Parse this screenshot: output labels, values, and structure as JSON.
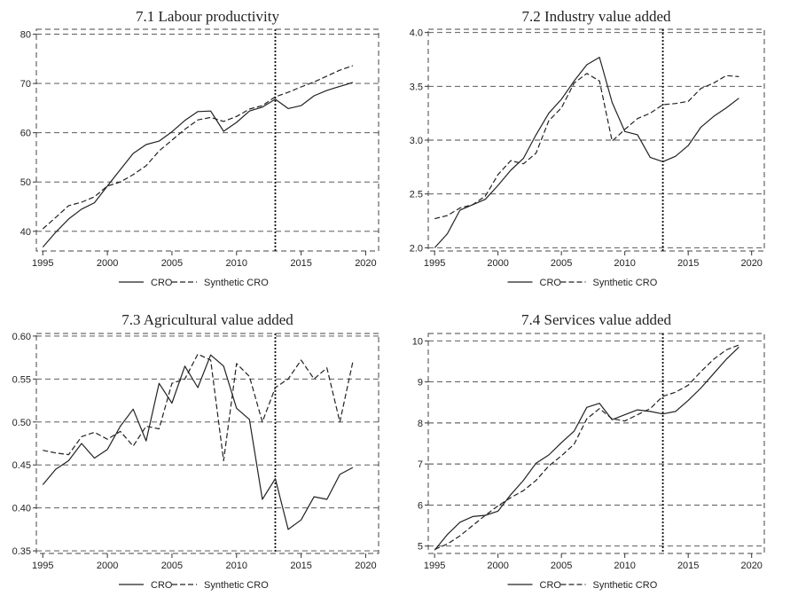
{
  "chart_data": [
    {
      "type": "line",
      "title": "7.1 Labour productivity",
      "xlabel": "",
      "ylabel": "",
      "xlim": [
        1994.5,
        2021
      ],
      "ylim": [
        36,
        81
      ],
      "xticks": [
        1995,
        2000,
        2005,
        2010,
        2015,
        2020
      ],
      "yticks": [
        40,
        50,
        60,
        70,
        80
      ],
      "ytick_labels": [
        "40",
        "50",
        "60",
        "70",
        "80"
      ],
      "grid": "horizontal dashed",
      "treatment_year": 2013,
      "legend": "bottom",
      "x": [
        1995,
        1996,
        1997,
        1998,
        1999,
        2000,
        2001,
        2002,
        2003,
        2004,
        2005,
        2006,
        2007,
        2008,
        2009,
        2010,
        2011,
        2012,
        2013,
        2014,
        2015,
        2016,
        2017,
        2018,
        2019
      ],
      "series": [
        {
          "name": "CRO",
          "dash": "solid",
          "values": [
            36.8,
            39.8,
            42.5,
            44.5,
            45.8,
            49.2,
            52.5,
            55.8,
            57.6,
            58.3,
            60.2,
            62.5,
            64.3,
            64.4,
            60.3,
            62.1,
            64.4,
            65.2,
            66.8,
            64.9,
            65.5,
            67.5,
            68.6,
            69.4,
            70.2
          ]
        },
        {
          "name": "Synthetic CRO",
          "dash": "dashed",
          "values": [
            40.5,
            42.8,
            45.2,
            45.9,
            47.0,
            49.2,
            50.0,
            51.5,
            53.3,
            56.3,
            58.5,
            60.7,
            62.6,
            63.1,
            62.3,
            63.3,
            64.8,
            65.5,
            67.3,
            68.2,
            69.3,
            70.3,
            71.5,
            72.7,
            73.6
          ]
        }
      ]
    },
    {
      "type": "line",
      "title": "7.2 Industry value added",
      "xlabel": "",
      "ylabel": "",
      "xlim": [
        1994.5,
        2021
      ],
      "ylim": [
        1.97,
        4.03
      ],
      "xticks": [
        1995,
        2000,
        2005,
        2010,
        2015,
        2020
      ],
      "yticks": [
        2.0,
        2.5,
        3.0,
        3.5,
        4.0
      ],
      "ytick_labels": [
        "2.0",
        "2.5",
        "3.0",
        "3.5",
        "4.0"
      ],
      "grid": "horizontal dashed",
      "treatment_year": 2013,
      "legend": "bottom",
      "x": [
        1995,
        1996,
        1997,
        1998,
        1999,
        2000,
        2001,
        2002,
        2003,
        2004,
        2005,
        2006,
        2007,
        2008,
        2009,
        2010,
        2011,
        2012,
        2013,
        2014,
        2015,
        2016,
        2017,
        2018,
        2019
      ],
      "series": [
        {
          "name": "CRO",
          "dash": "solid",
          "values": [
            2.0,
            2.13,
            2.35,
            2.4,
            2.45,
            2.58,
            2.72,
            2.83,
            3.05,
            3.25,
            3.38,
            3.55,
            3.7,
            3.77,
            3.35,
            3.08,
            3.05,
            2.84,
            2.8,
            2.85,
            2.95,
            3.12,
            3.22,
            3.3,
            3.39
          ]
        },
        {
          "name": "Synthetic CRO",
          "dash": "dashed",
          "values": [
            2.27,
            2.3,
            2.37,
            2.4,
            2.48,
            2.68,
            2.81,
            2.78,
            2.88,
            3.18,
            3.3,
            3.53,
            3.62,
            3.55,
            2.99,
            3.1,
            3.2,
            3.25,
            3.33,
            3.34,
            3.36,
            3.48,
            3.53,
            3.6,
            3.59
          ]
        }
      ]
    },
    {
      "type": "line",
      "title": "7.3 Agricultural value added",
      "xlabel": "",
      "ylabel": "",
      "xlim": [
        1994.5,
        2021
      ],
      "ylim": [
        0.347,
        0.603
      ],
      "xticks": [
        1995,
        2000,
        2005,
        2010,
        2015,
        2020
      ],
      "yticks": [
        0.35,
        0.4,
        0.45,
        0.5,
        0.55,
        0.6
      ],
      "ytick_labels": [
        "0.35",
        "0.40",
        "0.45",
        "0.50",
        "0.55",
        "0.60"
      ],
      "grid": "horizontal dashed",
      "treatment_year": 2013,
      "legend": "bottom",
      "x": [
        1995,
        1996,
        1997,
        1998,
        1999,
        2000,
        2001,
        2002,
        2003,
        2004,
        2005,
        2006,
        2007,
        2008,
        2009,
        2010,
        2011,
        2012,
        2013,
        2014,
        2015,
        2016,
        2017,
        2018,
        2019
      ],
      "series": [
        {
          "name": "CRO",
          "dash": "solid",
          "values": [
            0.427,
            0.445,
            0.455,
            0.475,
            0.458,
            0.468,
            0.495,
            0.515,
            0.478,
            0.545,
            0.522,
            0.565,
            0.54,
            0.578,
            0.565,
            0.516,
            0.503,
            0.41,
            0.434,
            0.375,
            0.386,
            0.413,
            0.41,
            0.439,
            0.447
          ]
        },
        {
          "name": "Synthetic CRO",
          "dash": "dashed",
          "values": [
            0.467,
            0.464,
            0.462,
            0.483,
            0.488,
            0.48,
            0.489,
            0.472,
            0.495,
            0.492,
            0.545,
            0.55,
            0.579,
            0.572,
            0.455,
            0.568,
            0.553,
            0.5,
            0.54,
            0.55,
            0.572,
            0.55,
            0.563,
            0.5,
            0.57
          ]
        }
      ]
    },
    {
      "type": "line",
      "title": "7.4 Services value added",
      "xlabel": "",
      "ylabel": "",
      "xlim": [
        1994.5,
        2021
      ],
      "ylim": [
        4.82,
        10.18
      ],
      "xticks": [
        1995,
        2000,
        2005,
        2010,
        2015,
        2020
      ],
      "yticks": [
        5,
        6,
        7,
        8,
        9,
        10
      ],
      "ytick_labels": [
        "5",
        "6",
        "7",
        "8",
        "9",
        "10"
      ],
      "grid": "horizontal dashed",
      "treatment_year": 2013,
      "legend": "bottom",
      "x": [
        1995,
        1996,
        1997,
        1998,
        1999,
        2000,
        2001,
        2002,
        2003,
        2004,
        2005,
        2006,
        2007,
        2008,
        2009,
        2010,
        2011,
        2012,
        2013,
        2014,
        2015,
        2016,
        2017,
        2018,
        2019
      ],
      "series": [
        {
          "name": "CRO",
          "dash": "solid",
          "values": [
            4.9,
            5.28,
            5.58,
            5.72,
            5.75,
            5.85,
            6.25,
            6.6,
            7.02,
            7.22,
            7.52,
            7.8,
            8.38,
            8.48,
            8.08,
            8.2,
            8.32,
            8.28,
            8.22,
            8.28,
            8.55,
            8.85,
            9.2,
            9.55,
            9.85
          ]
        },
        {
          "name": "Synthetic CRO",
          "dash": "dashed",
          "values": [
            4.92,
            5.05,
            5.25,
            5.5,
            5.75,
            5.98,
            6.18,
            6.35,
            6.6,
            6.95,
            7.2,
            7.48,
            8.1,
            8.35,
            8.1,
            8.05,
            8.2,
            8.35,
            8.65,
            8.75,
            8.92,
            9.25,
            9.55,
            9.78,
            9.9
          ]
        }
      ]
    }
  ]
}
